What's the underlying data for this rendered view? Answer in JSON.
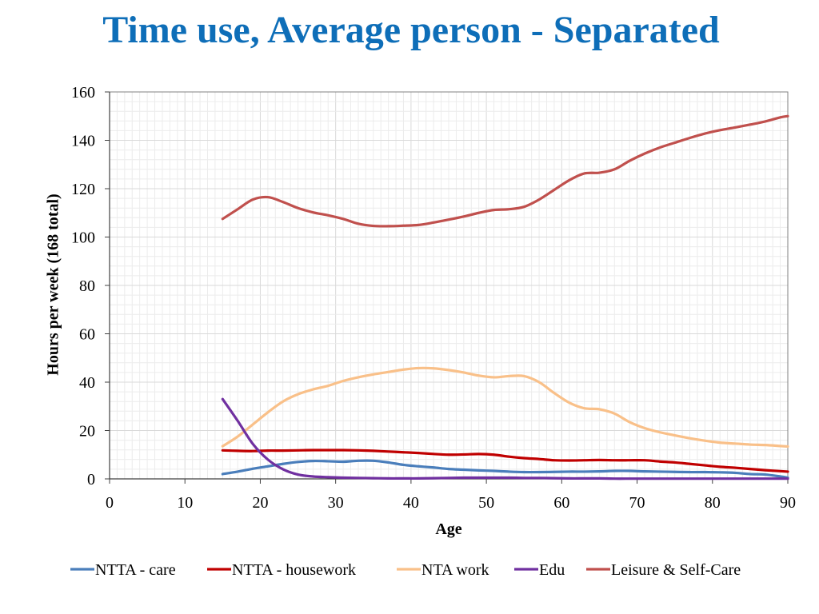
{
  "page": {
    "title": "Time use, Average person - Separated"
  },
  "chart_data": {
    "type": "line",
    "title": "Time use, Average person - Separated",
    "xlabel": "Age",
    "ylabel": "Hours per week (168 total)",
    "xlim": [
      0,
      90
    ],
    "ylim": [
      0,
      160
    ],
    "xticks": [
      0,
      10,
      20,
      30,
      40,
      50,
      60,
      70,
      80,
      90
    ],
    "yticks": [
      0,
      20,
      40,
      60,
      80,
      100,
      120,
      140,
      160
    ],
    "grid": true,
    "legend_position": "bottom",
    "x": [
      15,
      17,
      19,
      21,
      23,
      25,
      27,
      29,
      31,
      33,
      35,
      37,
      39,
      41,
      43,
      45,
      47,
      49,
      51,
      53,
      55,
      57,
      59,
      61,
      63,
      65,
      67,
      69,
      71,
      73,
      75,
      77,
      79,
      81,
      83,
      85,
      87,
      89,
      90
    ],
    "series": [
      {
        "name": "NTTA - care",
        "color": "#4a7ebb",
        "values": [
          2.0,
          3.0,
          4.2,
          5.2,
          6.2,
          7.0,
          7.4,
          7.3,
          7.1,
          7.5,
          7.5,
          6.8,
          5.8,
          5.2,
          4.7,
          4.1,
          3.8,
          3.5,
          3.3,
          3.0,
          2.8,
          2.8,
          2.9,
          3.0,
          3.0,
          3.1,
          3.3,
          3.3,
          3.1,
          3.0,
          2.9,
          2.8,
          2.8,
          2.7,
          2.5,
          2.0,
          1.8,
          1.0,
          0.5
        ]
      },
      {
        "name": "NTTA - housework",
        "color": "#c00000",
        "values": [
          11.8,
          11.6,
          11.5,
          11.7,
          11.7,
          11.8,
          11.9,
          11.9,
          11.9,
          11.8,
          11.6,
          11.3,
          11.0,
          10.7,
          10.3,
          10.0,
          10.1,
          10.3,
          10.0,
          9.2,
          8.6,
          8.2,
          7.7,
          7.6,
          7.7,
          7.8,
          7.7,
          7.7,
          7.7,
          7.2,
          6.8,
          6.2,
          5.6,
          5.0,
          4.6,
          4.1,
          3.6,
          3.2,
          3.0
        ]
      },
      {
        "name": "NTA work",
        "color": "#f9c089",
        "values": [
          13.5,
          17.5,
          22.5,
          27.5,
          32.0,
          35.0,
          37.0,
          38.5,
          40.5,
          42.0,
          43.2,
          44.2,
          45.2,
          45.8,
          45.7,
          45.0,
          44.0,
          42.7,
          42.0,
          42.5,
          42.5,
          40.0,
          35.5,
          31.5,
          29.2,
          28.8,
          27.0,
          23.5,
          21.0,
          19.3,
          18.0,
          16.8,
          15.8,
          15.0,
          14.6,
          14.2,
          14.0,
          13.6,
          13.4
        ]
      },
      {
        "name": "Edu",
        "color": "#7030a0",
        "values": [
          33.0,
          24.0,
          14.5,
          8.0,
          4.0,
          1.8,
          1.0,
          0.7,
          0.5,
          0.4,
          0.3,
          0.2,
          0.2,
          0.2,
          0.3,
          0.4,
          0.5,
          0.5,
          0.5,
          0.5,
          0.4,
          0.4,
          0.3,
          0.2,
          0.2,
          0.2,
          0.1,
          0.1,
          0.1,
          0.1,
          0.1,
          0.1,
          0.1,
          0.1,
          0.1,
          0.1,
          0.1,
          0.1,
          0.1
        ]
      },
      {
        "name": "Leisure & Self-Care",
        "color": "#c0504d",
        "values": [
          107.5,
          111.5,
          115.5,
          116.5,
          114.5,
          112.0,
          110.2,
          109.0,
          107.5,
          105.5,
          104.6,
          104.5,
          104.7,
          105.0,
          106.0,
          107.2,
          108.5,
          110.0,
          111.2,
          111.5,
          112.5,
          115.5,
          119.5,
          123.5,
          126.3,
          126.6,
          128.0,
          131.5,
          134.5,
          137.0,
          139.0,
          141.0,
          142.8,
          144.2,
          145.3,
          146.5,
          147.8,
          149.5,
          150.0
        ]
      }
    ]
  }
}
